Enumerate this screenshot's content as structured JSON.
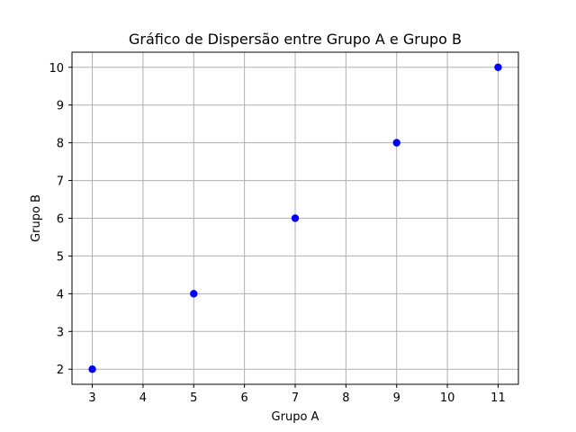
{
  "chart_data": {
    "type": "scatter",
    "title": "Gráfico de Dispersão entre Grupo A e Grupo B",
    "xlabel": "Grupo A",
    "ylabel": "Grupo B",
    "x": [
      3,
      5,
      7,
      9,
      11
    ],
    "y": [
      2,
      4,
      6,
      8,
      10
    ],
    "xlim": [
      2.6,
      11.4
    ],
    "ylim": [
      1.6,
      10.4
    ],
    "xticks": [
      3,
      4,
      5,
      6,
      7,
      8,
      9,
      10,
      11
    ],
    "yticks": [
      2,
      3,
      4,
      5,
      6,
      7,
      8,
      9,
      10
    ],
    "grid": true,
    "marker_color": "#0000ff",
    "grid_color": "#b0b0b0"
  }
}
